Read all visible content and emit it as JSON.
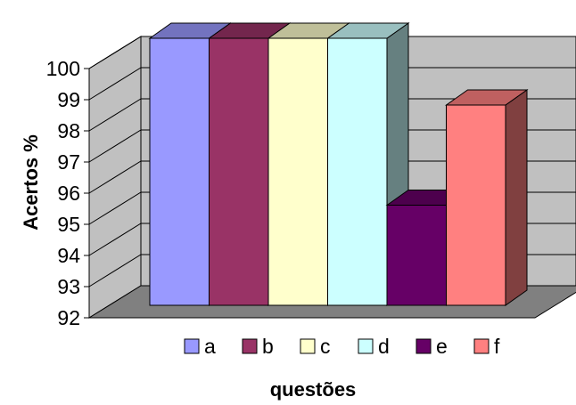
{
  "chart_data": {
    "type": "bar",
    "style": "3d-clustered-column",
    "categories": [
      "a",
      "b",
      "c",
      "d",
      "e",
      "f"
    ],
    "values": [
      100,
      100,
      100,
      100,
      95,
      98
    ],
    "xlabel": "questões",
    "ylabel": "Acertos %",
    "ylim": [
      92,
      100
    ],
    "yticks": [
      "92",
      "93",
      "94",
      "95",
      "96",
      "97",
      "98",
      "99",
      "100"
    ],
    "grid": true,
    "legend": {
      "position": "bottom",
      "entries": [
        "a",
        "b",
        "c",
        "d",
        "e",
        "f"
      ]
    },
    "colors": [
      "#9999ff",
      "#993366",
      "#ffffcc",
      "#ccffff",
      "#660066",
      "#ff8080"
    ],
    "wall_color": "#c0c0c0",
    "floor_color": "#808080"
  }
}
